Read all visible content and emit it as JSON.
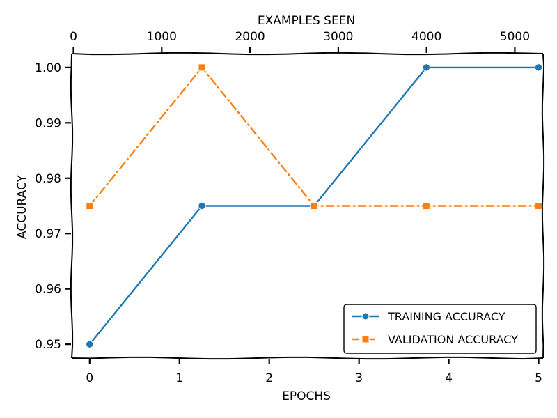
{
  "chart_data": {
    "type": "line",
    "title": "",
    "xlabel": "EPOCHS",
    "ylabel": "ACCURACY",
    "secondary_xlabel": "EXAMPLES SEEN",
    "xlim": [
      -0.2,
      5.05
    ],
    "ylim": [
      0.9475,
      1.0025
    ],
    "secondary_xlim": [
      -20,
      5320
    ],
    "x_ticks": [
      "0",
      "1",
      "2",
      "3",
      "4",
      "5"
    ],
    "y_ticks": [
      "0.95",
      "0.96",
      "0.97",
      "0.98",
      "0.99",
      "1.00"
    ],
    "secondary_x_ticks": [
      "0",
      "1000",
      "2000",
      "3000",
      "4000",
      "5000"
    ],
    "grid": false,
    "legend_position": "lower-right",
    "series": [
      {
        "name": "TRAINING ACCURACY",
        "color": "#1f77b4",
        "marker": "circle",
        "line_style": "solid",
        "x": [
          0,
          1.25,
          2.5,
          3.75,
          5
        ],
        "values": [
          0.95,
          0.975,
          0.975,
          1.0,
          1.0
        ]
      },
      {
        "name": "VALIDATION ACCURACY",
        "color": "#ff7f0e",
        "marker": "square",
        "line_style": "dash-dot",
        "x": [
          0,
          1.25,
          2.5,
          3.75,
          5
        ],
        "values": [
          0.975,
          1.0,
          0.975,
          0.975,
          0.975
        ]
      }
    ]
  }
}
